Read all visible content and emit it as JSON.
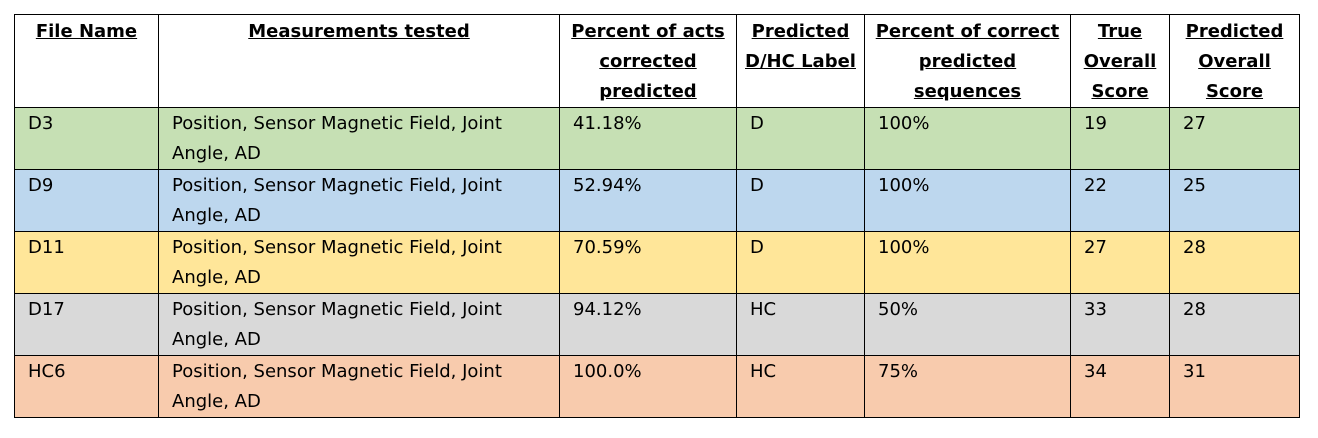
{
  "table": {
    "header": [
      "File Name",
      "Measurements tested",
      "Percent of acts corrected predicted",
      "Predicted D/HC Label",
      "Percent of correct predicted sequences",
      "True Overall Score",
      "Predicted Overall Score"
    ],
    "rows": [
      [
        "D3",
        "Position, Sensor Magnetic Field, Joint Angle, AD",
        "41.18%",
        "D",
        "100%",
        "19",
        "27"
      ],
      [
        "D9",
        "Position, Sensor Magnetic Field, Joint Angle, AD",
        "52.94%",
        "D",
        "100%",
        "22",
        "25"
      ],
      [
        "D11",
        "Position, Sensor Magnetic Field, Joint Angle, AD",
        "70.59%",
        "D",
        "100%",
        "27",
        "28"
      ],
      [
        "D17",
        "Position, Sensor Magnetic Field, Joint Angle, AD",
        "94.12%",
        "HC",
        "50%",
        "33",
        "28"
      ],
      [
        "HC6",
        "Position, Sensor Magnetic Field, Joint Angle, AD",
        "100.0%",
        "HC",
        "75%",
        "34",
        "31"
      ]
    ]
  }
}
